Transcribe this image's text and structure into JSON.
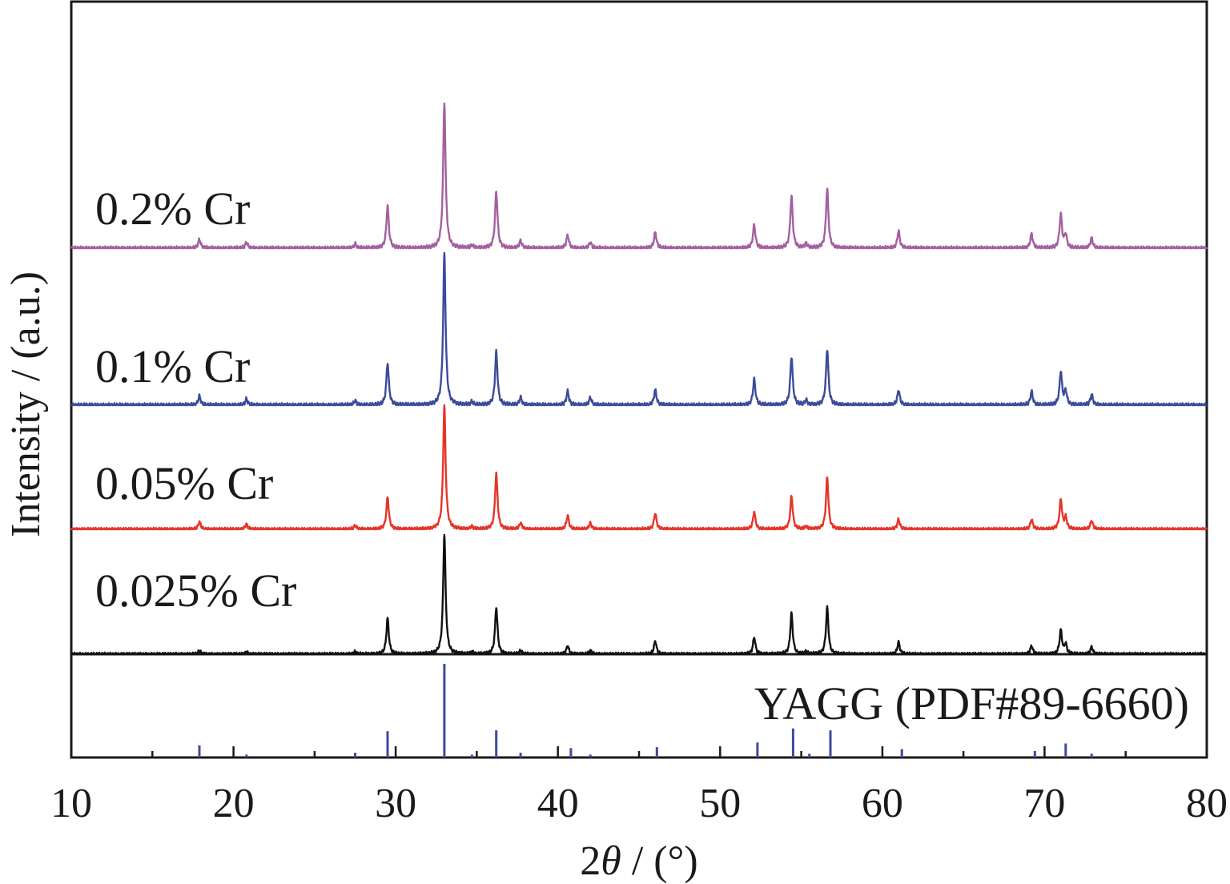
{
  "chart_data": {
    "type": "line",
    "title": "",
    "xlabel_prefix": "2",
    "xlabel_symbol": "θ",
    "xlabel_suffix": " / (°)",
    "ylabel": "Intensity / (a.u.)",
    "xlim": [
      10,
      80
    ],
    "xticks": [
      10,
      20,
      30,
      40,
      50,
      60,
      70,
      80
    ],
    "grid": false,
    "peak_positions": [
      17.9,
      20.8,
      27.5,
      29.5,
      33.0,
      34.7,
      36.2,
      37.7,
      40.6,
      42.0,
      46.0,
      52.1,
      54.4,
      55.3,
      56.6,
      61.0,
      69.2,
      71.0,
      71.3,
      72.9
    ],
    "series": [
      {
        "name": "0.025% Cr",
        "color": "#111111",
        "peak_intensities": [
          0.03,
          0.02,
          0.02,
          0.3,
          1.0,
          0.02,
          0.39,
          0.03,
          0.07,
          0.03,
          0.11,
          0.14,
          0.34,
          0.02,
          0.39,
          0.1,
          0.07,
          0.2,
          0.08,
          0.06
        ]
      },
      {
        "name": "0.05% Cr",
        "color": "#e53528",
        "peak_intensities": [
          0.06,
          0.04,
          0.03,
          0.26,
          1.0,
          0.02,
          0.45,
          0.05,
          0.11,
          0.05,
          0.13,
          0.14,
          0.27,
          0.02,
          0.42,
          0.08,
          0.08,
          0.24,
          0.09,
          0.07
        ]
      },
      {
        "name": "0.1% Cr",
        "color": "#3c4b9b",
        "peak_intensities": [
          0.06,
          0.04,
          0.03,
          0.28,
          1.0,
          0.02,
          0.35,
          0.05,
          0.09,
          0.05,
          0.1,
          0.17,
          0.32,
          0.03,
          0.37,
          0.1,
          0.09,
          0.22,
          0.09,
          0.07
        ]
      },
      {
        "name": "0.2% Cr",
        "color": "#a4609f",
        "peak_intensities": [
          0.06,
          0.04,
          0.03,
          0.29,
          1.0,
          0.02,
          0.39,
          0.05,
          0.09,
          0.04,
          0.11,
          0.16,
          0.36,
          0.03,
          0.41,
          0.12,
          0.1,
          0.23,
          0.09,
          0.07
        ]
      }
    ],
    "reference": {
      "name": "YAGG (PDF#89-6660)",
      "color": "#3c4b9b",
      "positions": [
        17.9,
        20.8,
        27.5,
        29.5,
        33.0,
        34.7,
        36.2,
        37.7,
        40.8,
        42.0,
        46.1,
        52.3,
        54.5,
        55.5,
        56.8,
        61.2,
        69.4,
        71.3,
        72.9
      ],
      "intensities": [
        0.13,
        0.03,
        0.05,
        0.28,
        1.0,
        0.03,
        0.29,
        0.05,
        0.1,
        0.03,
        0.11,
        0.16,
        0.31,
        0.04,
        0.29,
        0.09,
        0.07,
        0.15,
        0.04
      ]
    }
  }
}
